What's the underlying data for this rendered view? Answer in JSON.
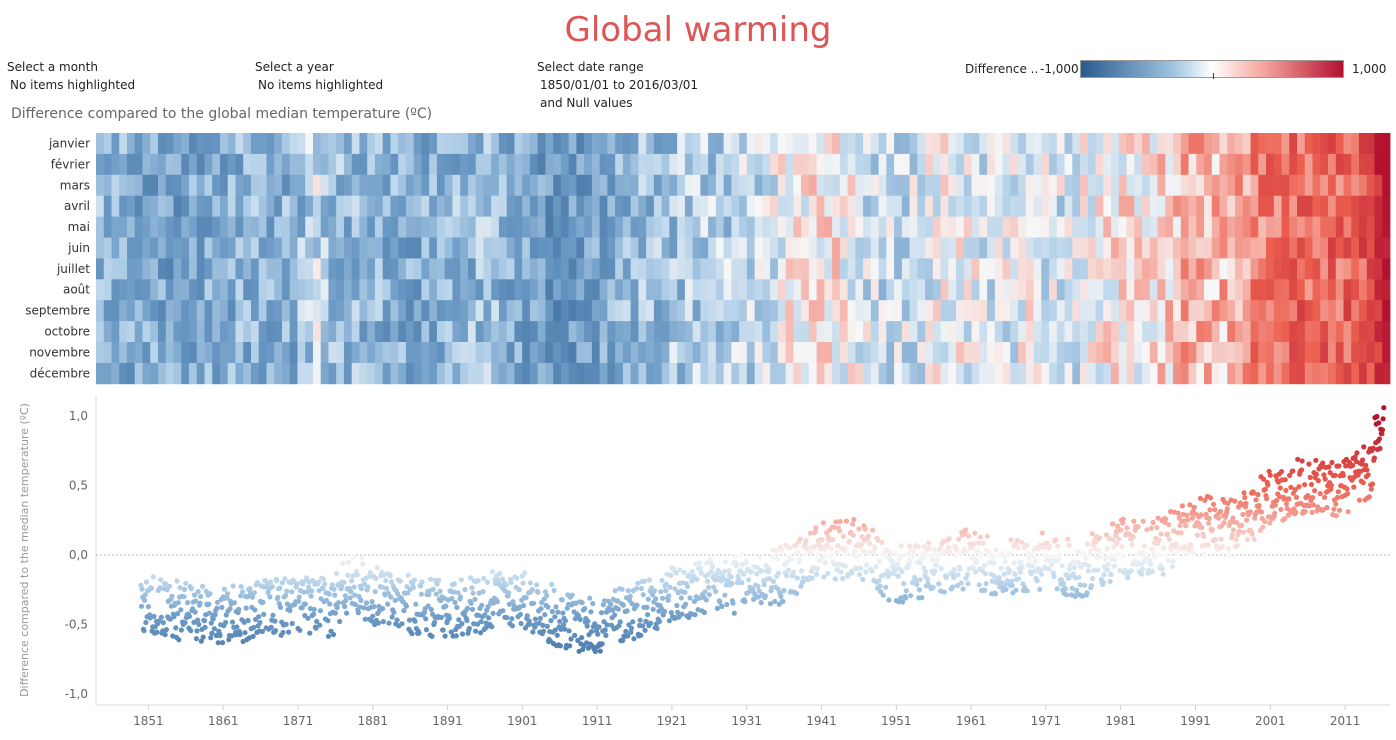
{
  "title": "Global warming",
  "filters": [
    {
      "label": "Select a month",
      "value": "No items highlighted"
    },
    {
      "label": "Select a year",
      "value": "No items highlighted"
    },
    {
      "label": "Select date range",
      "value": "1850/01/01 to 2016/03/01",
      "value2": "and Null values"
    }
  ],
  "legend": {
    "title": "Difference ..",
    "min": "-1,000",
    "max": "1,000"
  },
  "subtitle": "Difference compared to the global median temperature (ºC)",
  "colors": {
    "cold": "#2a5a8e",
    "neutral": "#ffffff",
    "warm": "#b2102f",
    "title": "#dd5555"
  },
  "chart_data": [
    {
      "type": "heatmap",
      "title": "Difference compared to the global median temperature (ºC)",
      "rows": [
        "janvier",
        "février",
        "mars",
        "avril",
        "mai",
        "juin",
        "juillet",
        "août",
        "septembre",
        "octobre",
        "novembre",
        "décembre"
      ],
      "x_range": [
        1850,
        2016
      ],
      "value_range": [
        -1,
        1
      ],
      "decade_mean_anomaly": [
        {
          "decade": 1850,
          "value": -0.4
        },
        {
          "decade": 1860,
          "value": -0.42
        },
        {
          "decade": 1870,
          "value": -0.35
        },
        {
          "decade": 1880,
          "value": -0.36
        },
        {
          "decade": 1890,
          "value": -0.42
        },
        {
          "decade": 1900,
          "value": -0.45
        },
        {
          "decade": 1910,
          "value": -0.42
        },
        {
          "decade": 1920,
          "value": -0.28
        },
        {
          "decade": 1930,
          "value": -0.15
        },
        {
          "decade": 1940,
          "value": 0.03
        },
        {
          "decade": 1950,
          "value": -0.1
        },
        {
          "decade": 1960,
          "value": -0.05
        },
        {
          "decade": 1970,
          "value": -0.05
        },
        {
          "decade": 1980,
          "value": 0.12
        },
        {
          "decade": 1990,
          "value": 0.25
        },
        {
          "decade": 2000,
          "value": 0.45
        },
        {
          "decade": 2010,
          "value": 0.55
        }
      ]
    },
    {
      "type": "scatter",
      "ylabel": "Difference compared to the median temperature (ºC)",
      "ylim": [
        -1.0,
        1.15
      ],
      "yticks": [
        "1,0",
        "0,5",
        "0,0",
        "-0,5",
        "-1,0"
      ],
      "ytick_values": [
        1.0,
        0.5,
        0.0,
        -0.5,
        -1.0
      ],
      "xticks": [
        "1851",
        "1861",
        "1871",
        "1881",
        "1891",
        "1901",
        "1911",
        "1921",
        "1931",
        "1941",
        "1951",
        "1961",
        "1971",
        "1981",
        "1991",
        "2001",
        "2011"
      ],
      "xlim": [
        1844,
        2017
      ],
      "reference_line": 0.0,
      "trend": [
        {
          "year": 1850,
          "value": -0.35
        },
        {
          "year": 1860,
          "value": -0.45
        },
        {
          "year": 1865,
          "value": -0.4
        },
        {
          "year": 1870,
          "value": -0.35
        },
        {
          "year": 1875,
          "value": -0.38
        },
        {
          "year": 1878,
          "value": -0.15
        },
        {
          "year": 1880,
          "value": -0.28
        },
        {
          "year": 1885,
          "value": -0.35
        },
        {
          "year": 1890,
          "value": -0.4
        },
        {
          "year": 1895,
          "value": -0.35
        },
        {
          "year": 1900,
          "value": -0.3
        },
        {
          "year": 1905,
          "value": -0.45
        },
        {
          "year": 1910,
          "value": -0.52
        },
        {
          "year": 1915,
          "value": -0.4
        },
        {
          "year": 1920,
          "value": -0.3
        },
        {
          "year": 1925,
          "value": -0.25
        },
        {
          "year": 1930,
          "value": -0.2
        },
        {
          "year": 1935,
          "value": -0.15
        },
        {
          "year": 1940,
          "value": 0.02
        },
        {
          "year": 1945,
          "value": 0.05
        },
        {
          "year": 1950,
          "value": -0.15
        },
        {
          "year": 1955,
          "value": -0.12
        },
        {
          "year": 1960,
          "value": -0.03
        },
        {
          "year": 1965,
          "value": -0.1
        },
        {
          "year": 1970,
          "value": -0.05
        },
        {
          "year": 1975,
          "value": -0.12
        },
        {
          "year": 1980,
          "value": 0.05
        },
        {
          "year": 1985,
          "value": 0.03
        },
        {
          "year": 1990,
          "value": 0.22
        },
        {
          "year": 1995,
          "value": 0.2
        },
        {
          "year": 2000,
          "value": 0.4
        },
        {
          "year": 2005,
          "value": 0.5
        },
        {
          "year": 2010,
          "value": 0.48
        },
        {
          "year": 2014,
          "value": 0.6
        },
        {
          "year": 2016,
          "value": 1.05
        }
      ]
    }
  ]
}
